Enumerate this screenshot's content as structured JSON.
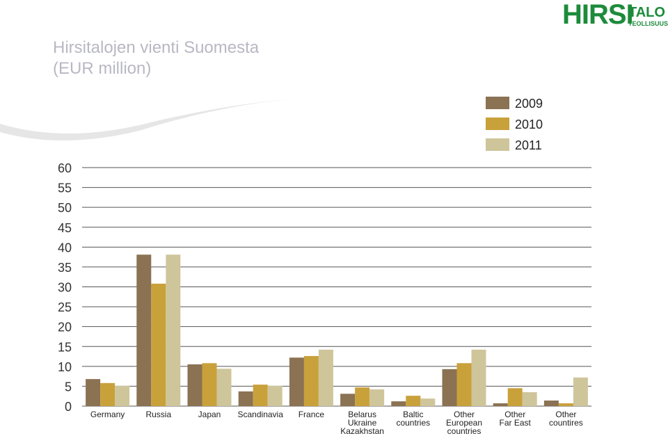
{
  "logo": {
    "main": "HIRSI",
    "side": "TALO",
    "sub": "TEOLLISUUS"
  },
  "chart_data": {
    "type": "bar",
    "title": "Hirsitalojen vienti Suomesta",
    "subtitle": "(EUR million)",
    "categories": [
      "Germany",
      "Russia",
      "Japan",
      "Scandinavia",
      "France",
      "Belarus\nUkraine\nKazakhstan",
      "Baltic\ncountries",
      "Other\nEuropean\ncountries",
      "Other\nFar East",
      "Other\ncountires"
    ],
    "series": [
      {
        "name": "2009",
        "color": "#8a7253",
        "values": [
          6.8,
          38.1,
          10.5,
          3.7,
          12.2,
          3.1,
          1.2,
          9.3,
          0.7,
          1.4
        ]
      },
      {
        "name": "2010",
        "color": "#c9a13b",
        "values": [
          5.8,
          30.8,
          10.8,
          5.4,
          12.6,
          4.7,
          2.6,
          10.8,
          4.5,
          0.7
        ]
      },
      {
        "name": "2011",
        "color": "#cfc59b",
        "values": [
          5.1,
          38.1,
          9.4,
          5.1,
          14.2,
          4.2,
          1.9,
          14.2,
          3.5,
          7.2
        ]
      }
    ],
    "ylim": [
      0,
      60
    ],
    "yticks": [
      0,
      5,
      10,
      15,
      20,
      25,
      30,
      35,
      40,
      45,
      50,
      55,
      60
    ],
    "grid": true
  }
}
